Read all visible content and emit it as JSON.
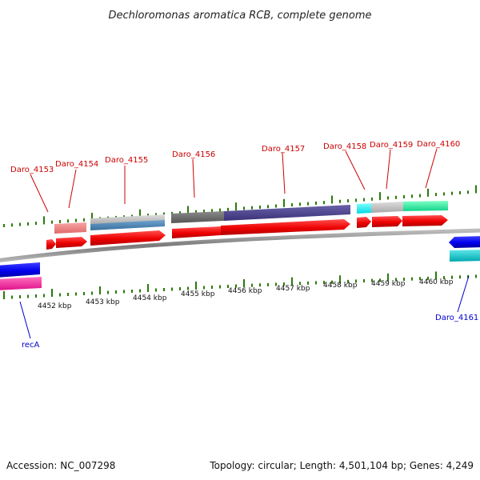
{
  "title": "Dechloromonas aromatica RCB, complete genome",
  "footer": {
    "accession": "Accession: NC_007298",
    "summary": "Topology: circular; Length: 4,501,104 bp; Genes: 4,249"
  },
  "colors": {
    "background": "#ffffff",
    "backbone": "#8a8a8a",
    "tick_major": "#2b7a0b",
    "tick_minor": "#2f8f14",
    "forward_label": "#cc0000",
    "reverse_label": "#0000cc",
    "cds_forward": "#ff0000",
    "cds_reverse": "#0000ff"
  },
  "axis": {
    "unit": "kbp",
    "ticks": [
      {
        "label": "4452 kbp"
      },
      {
        "label": "4453 kbp"
      },
      {
        "label": "4454 kbp"
      },
      {
        "label": "4455 kbp"
      },
      {
        "label": "4456 kbp"
      },
      {
        "label": "4457 kbp"
      },
      {
        "label": "4458 kbp"
      },
      {
        "label": "4459 kbp"
      },
      {
        "label": "4460 kbp"
      }
    ]
  },
  "genes": [
    {
      "id": "Daro_4153",
      "strand": "+",
      "cds_color": "#ff0000",
      "feature_color": "#f08080"
    },
    {
      "id": "Daro_4154",
      "strand": "+",
      "cds_color": "#ff0000",
      "feature_color": "#f08080"
    },
    {
      "id": "Daro_4155",
      "strand": "+",
      "cds_color": "#ff0000",
      "feature_color": "#4682b4"
    },
    {
      "id": "Daro_4156",
      "strand": "+",
      "cds_color": "#ff0000",
      "feature_color": "#696969"
    },
    {
      "id": "Daro_4157",
      "strand": "+",
      "cds_color": "#ff0000",
      "feature_color": "#483d8b"
    },
    {
      "id": "Daro_4158",
      "strand": "+",
      "cds_color": "#ff0000",
      "feature_color": "#00ffff"
    },
    {
      "id": "Daro_4159",
      "strand": "+",
      "cds_color": "#ff0000",
      "feature_color": "#c0c0c0"
    },
    {
      "id": "Daro_4160",
      "strand": "+",
      "cds_color": "#ff0000",
      "feature_color": "#00fa9a"
    },
    {
      "id": "Daro_4161",
      "strand": "-",
      "cds_color": "#0000ff",
      "feature_color": "#00ced1"
    },
    {
      "id": "recA",
      "strand": "-",
      "cds_color": "#0000ff",
      "feature_color": "#ff1493"
    }
  ]
}
